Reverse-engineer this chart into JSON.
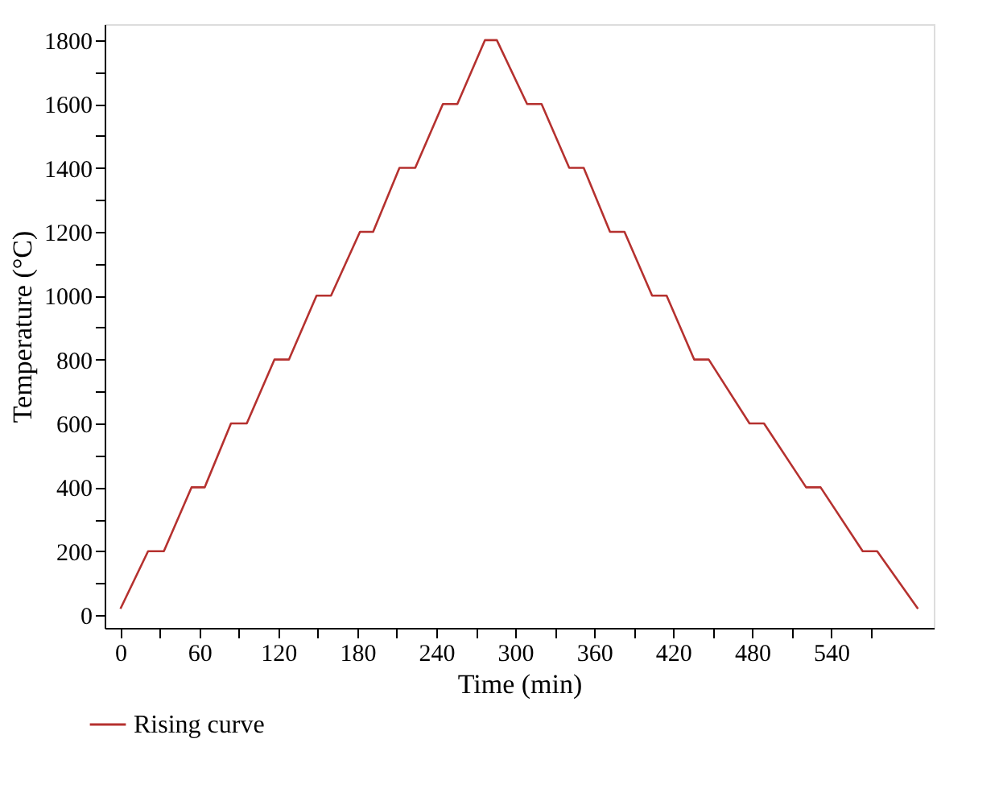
{
  "chart_data": {
    "type": "line",
    "xlabel": "Time (min)",
    "ylabel": "Temperature (°C)",
    "x": [
      0,
      21,
      33,
      54,
      64,
      84,
      96,
      117,
      128,
      149,
      160,
      182,
      192,
      212,
      224,
      245,
      256,
      277,
      286,
      309,
      320,
      341,
      352,
      372,
      383,
      404,
      415,
      436,
      447,
      478,
      489,
      521,
      532,
      564,
      575,
      606
    ],
    "series": [
      {
        "name": "Rising curve",
        "color": "#b5312f",
        "values": [
          20,
          200,
          200,
          400,
          400,
          600,
          600,
          800,
          800,
          1000,
          1000,
          1200,
          1200,
          1400,
          1400,
          1600,
          1600,
          1800,
          1800,
          1600,
          1600,
          1400,
          1400,
          1200,
          1200,
          1000,
          1000,
          800,
          800,
          600,
          600,
          400,
          400,
          200,
          200,
          20
        ]
      }
    ],
    "xlim": [
      -12,
      618
    ],
    "ylim": [
      -40,
      1850
    ],
    "xticks": [
      0,
      {
        "value": 30,
        "label": null
      },
      60,
      {
        "value": 90,
        "label": null
      },
      120,
      {
        "value": 150,
        "label": null
      },
      180,
      {
        "value": 210,
        "label": null
      },
      240,
      {
        "value": 270,
        "label": null
      },
      300,
      {
        "value": 330,
        "label": null
      },
      360,
      {
        "value": 390,
        "label": null
      },
      420,
      {
        "value": 450,
        "label": null
      },
      480,
      {
        "value": 510,
        "label": null
      },
      540,
      {
        "value": 570,
        "label": null
      }
    ],
    "yticks": [
      0,
      {
        "value": 100,
        "label": null
      },
      200,
      {
        "value": 300,
        "label": null
      },
      400,
      {
        "value": 500,
        "label": null
      },
      600,
      {
        "value": 700,
        "label": null
      },
      800,
      {
        "value": 900,
        "label": null
      },
      1000,
      {
        "value": 1100,
        "label": null
      },
      1200,
      {
        "value": 1300,
        "label": null
      },
      1400,
      {
        "value": 1500,
        "label": null
      },
      1600,
      {
        "value": 1700,
        "label": null
      },
      1800
    ],
    "grid": false,
    "legend": "bottom",
    "marker": "none",
    "line_style": "solid"
  }
}
